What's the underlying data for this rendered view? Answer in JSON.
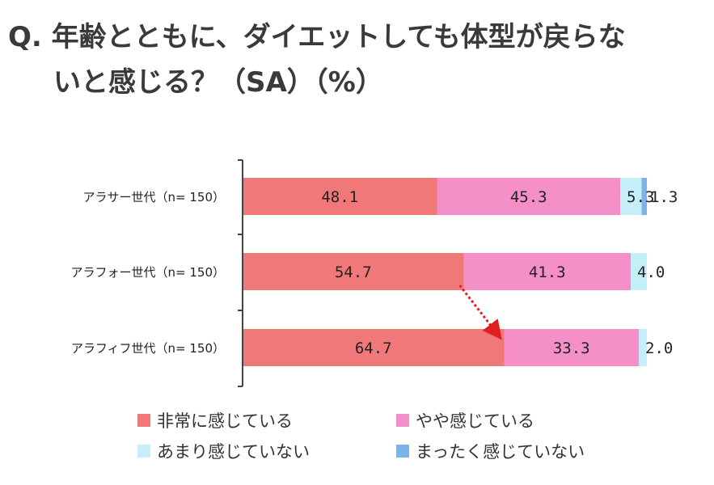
{
  "title": {
    "line1": "Q. 年齢とともに、ダイエットしても体型が戻らな",
    "line2": "いと感じる？（SA）（%）"
  },
  "chart_data": {
    "type": "bar",
    "orientation": "horizontal",
    "stacked": true,
    "title": "Q. 年齢とともに、ダイエットしても体型が戻らないと感じる？（SA）（%）",
    "xlim": [
      0,
      100
    ],
    "categories": [
      "アラサー世代（n= 150）",
      "アラフォー世代（n= 150）",
      "アラフィフ世代（n= 150）"
    ],
    "series": [
      {
        "name": "非常に感じている",
        "color": "#f07878",
        "values": [
          48.1,
          54.7,
          64.7
        ],
        "labels": [
          "48.1",
          "54.7",
          "64.7"
        ]
      },
      {
        "name": "やや感じている",
        "color": "#f48fc8",
        "values": [
          45.3,
          41.3,
          33.3
        ],
        "labels": [
          "45.3",
          "41.3",
          "33.3"
        ]
      },
      {
        "name": "あまり感じていない",
        "color": "#c4eef8",
        "values": [
          5.3,
          4.0,
          2.0
        ],
        "labels": [
          "5.3",
          "4.0",
          "2.0"
        ]
      },
      {
        "name": "まったく感じていない",
        "color": "#7fb2e6",
        "values": [
          1.3,
          0,
          0
        ],
        "labels": [
          "1.3",
          "",
          ""
        ]
      }
    ],
    "legend_position": "bottom",
    "annotation": {
      "type": "arrow",
      "color": "#e02020",
      "from": "アラフォー世代 非常に感じている end",
      "to": "アラフィフ世代 非常に感じている end"
    }
  }
}
